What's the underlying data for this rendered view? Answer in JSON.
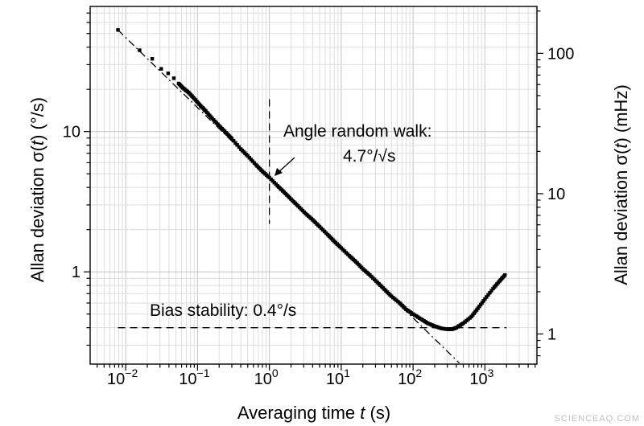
{
  "chart_data": {
    "type": "scatter",
    "title": "",
    "x_scale": "log",
    "y_scale": "log",
    "xlabel_prefix": "Averaging time ",
    "xlabel_var": "t",
    "xlabel_suffix": " (s)",
    "ylabel_left_prefix": "Allan deviation σ(",
    "ylabel_left_var": "t",
    "ylabel_left_suffix": ") (°/s)",
    "ylabel_right_prefix": "Allan deviation σ(",
    "ylabel_right_var": "t",
    "ylabel_right_suffix": ") (mHz)",
    "xlim": [
      0.0032,
      5300
    ],
    "ylim": [
      0.22,
      78
    ],
    "y2lim": [
      0.61,
      216
    ],
    "grid": true,
    "x_ticks": [
      {
        "value": 0.01,
        "base": "10",
        "exp": "−2"
      },
      {
        "value": 0.1,
        "base": "10",
        "exp": "−1"
      },
      {
        "value": 1,
        "base": "10",
        "exp": "0"
      },
      {
        "value": 10,
        "base": "10",
        "exp": "1"
      },
      {
        "value": 100,
        "base": "10",
        "exp": "2"
      },
      {
        "value": 1000,
        "base": "10",
        "exp": "3"
      }
    ],
    "y_ticks": [
      {
        "value": 1,
        "label": "1"
      },
      {
        "value": 10,
        "label": "10"
      }
    ],
    "y2_ticks": [
      {
        "value": 1,
        "label": "1"
      },
      {
        "value": 10,
        "label": "10"
      },
      {
        "value": 100,
        "label": "100"
      }
    ],
    "series": [
      {
        "marker": "square",
        "color": "#000000",
        "x": [
          0.0078,
          0.0156,
          0.0234,
          0.0312,
          0.039,
          0.0468,
          0.0546,
          0.0625,
          0.075,
          0.09,
          0.11,
          0.13,
          0.16,
          0.2,
          0.25,
          0.3,
          0.4,
          0.5,
          0.65,
          0.8,
          1.0,
          1.3,
          1.6,
          2,
          2.5,
          3.2,
          4,
          5,
          6.5,
          8,
          10,
          13,
          16,
          20,
          25,
          32,
          40,
          50,
          65,
          80,
          100,
          130,
          160,
          200,
          250,
          300,
          350,
          400,
          500,
          650,
          800,
          1000,
          1300,
          1600,
          1900
        ],
        "y": [
          53,
          38,
          33,
          28,
          26,
          24,
          22,
          20.5,
          19,
          17.2,
          15.3,
          14.0,
          12.4,
          11.0,
          9.8,
          8.9,
          7.5,
          6.7,
          5.8,
          5.2,
          4.7,
          4.1,
          3.7,
          3.3,
          2.95,
          2.6,
          2.35,
          2.1,
          1.84,
          1.65,
          1.48,
          1.3,
          1.18,
          1.05,
          0.95,
          0.84,
          0.75,
          0.67,
          0.6,
          0.54,
          0.5,
          0.46,
          0.43,
          0.41,
          0.395,
          0.39,
          0.39,
          0.4,
          0.43,
          0.48,
          0.55,
          0.64,
          0.76,
          0.86,
          0.95
        ]
      }
    ],
    "fit_lines": [
      {
        "name": "arw",
        "style": "dash-dot",
        "x": [
          0.0078,
          440
        ],
        "y": [
          53,
          0.224
        ]
      },
      {
        "name": "bias",
        "style": "dashed",
        "x": [
          0.0078,
          2000
        ],
        "y": [
          0.4,
          0.4
        ]
      },
      {
        "name": "marker-tau1",
        "style": "dashed",
        "x": [
          1,
          1
        ],
        "y": [
          17,
          2.2
        ]
      }
    ],
    "annotations": {
      "arw_line1": "Angle random walk:",
      "arw_line2": "4.7°/√s",
      "bias": "Bias stability: 0.4°/s"
    }
  },
  "watermark": "SCIENCEAQ.COM"
}
